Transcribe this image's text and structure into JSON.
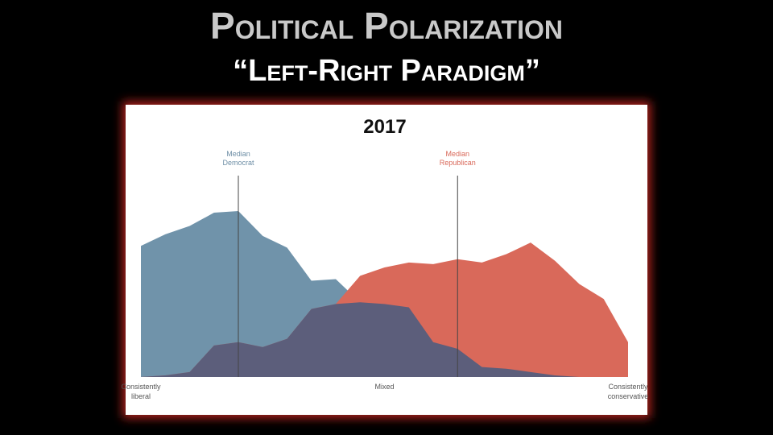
{
  "slide": {
    "title": "Political Polarization",
    "subtitle": "“Left-Right Paradigm”"
  },
  "chart_data": {
    "type": "area",
    "title": "2017",
    "x": [
      0,
      1,
      2,
      3,
      4,
      5,
      6,
      7,
      8,
      9,
      10,
      11,
      12,
      13,
      14,
      15,
      16,
      17,
      18,
      19,
      20
    ],
    "xlim": [
      0,
      20
    ],
    "ylim": [
      0,
      100
    ],
    "series": [
      {
        "color": "#7093aa",
        "values": [
          79,
          86,
          91,
          99,
          100,
          85,
          78,
          58,
          59,
          45,
          44,
          42,
          21,
          17,
          6,
          5,
          3,
          1,
          0,
          0,
          0
        ]
      },
      {
        "color": "#d9695a",
        "values": [
          0,
          1,
          3,
          19,
          21,
          18,
          23,
          41,
          44,
          61,
          66,
          69,
          68,
          71,
          69,
          74,
          81,
          70,
          56,
          47,
          21
        ]
      }
    ],
    "overlap_color": "#5c5e7b",
    "annotations": [
      {
        "lines": [
          "Median",
          "Democrat"
        ],
        "x": 4,
        "color": "#6d8ea5"
      },
      {
        "lines": [
          "Median",
          "Republican"
        ],
        "x": 13,
        "color": "#d9695a"
      }
    ],
    "x_labels": [
      {
        "lines": [
          "Consistently",
          "liberal"
        ],
        "x": 0
      },
      {
        "lines": [
          "Mixed"
        ],
        "x": 10
      },
      {
        "lines": [
          "Consistently",
          "conservative"
        ],
        "x": 20
      }
    ]
  }
}
